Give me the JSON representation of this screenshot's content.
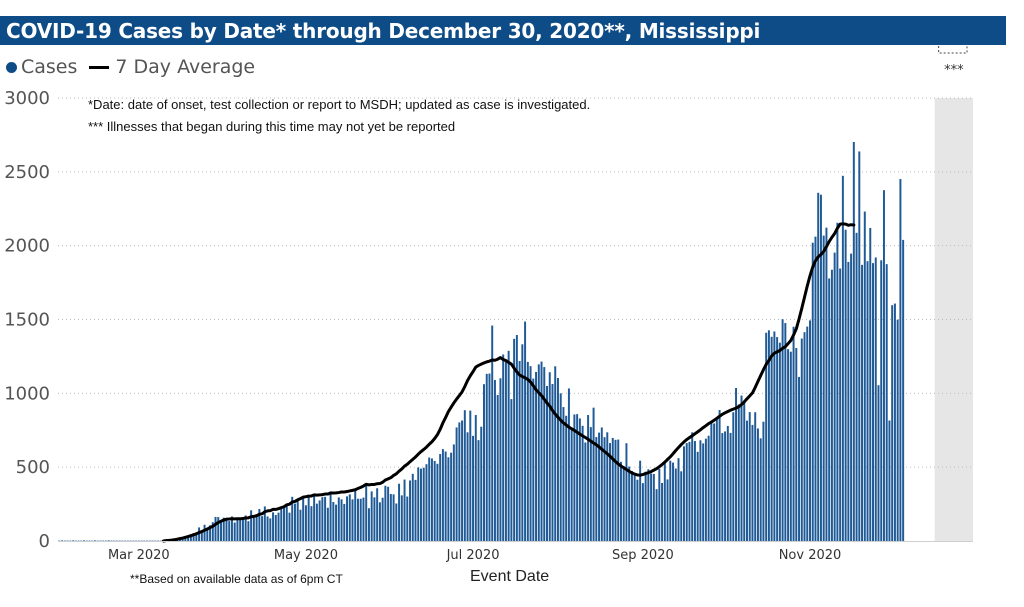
{
  "header": {
    "title": "COVID-19 Cases by Date* through December 30, 2020**, Mississippi"
  },
  "legend": {
    "cases_label": "Cases",
    "avg_label": "7 Day Average"
  },
  "notes": {
    "date_note": "*Date: date of onset, test collection or report to MSDH; updated as case is investigated.",
    "recent_note": "*** Illnesses that began during this time may not yet be reported",
    "based_note": "**Based on available data as of 6pm CT",
    "shade_label": "***"
  },
  "colors": {
    "title_bg": "#0e4c87",
    "bar": "#1f5a96",
    "average": "#000000",
    "shade": "#e6e6e6"
  },
  "chart_data": {
    "type": "bar",
    "title": "COVID-19 Cases by Date* through December 30, 2020**, Mississippi",
    "xlabel": "Event Date",
    "ylabel": "",
    "ylim": [
      0,
      3000
    ],
    "yticks": [
      0,
      500,
      1000,
      1500,
      2000,
      2500,
      3000
    ],
    "xlim": [
      "2020-02-01",
      "2020-12-30"
    ],
    "xticks": [
      {
        "date": "2020-03-01",
        "label": "Mar 2020"
      },
      {
        "date": "2020-05-01",
        "label": "May 2020"
      },
      {
        "date": "2020-07-01",
        "label": "Jul 2020"
      },
      {
        "date": "2020-09-01",
        "label": "Sep 2020"
      },
      {
        "date": "2020-11-01",
        "label": "Nov 2020"
      }
    ],
    "grid": true,
    "legend_position": "top-left",
    "shaded_region": {
      "start": "2020-12-17",
      "end": "2020-12-30",
      "label": "***"
    },
    "series": [
      {
        "name": "Cases",
        "type": "bar",
        "start_date": "2020-02-01",
        "values": [
          0,
          2,
          0,
          0,
          0,
          3,
          0,
          0,
          0,
          1,
          0,
          0,
          0,
          2,
          0,
          0,
          0,
          0,
          1,
          0,
          0,
          0,
          0,
          0,
          0,
          0,
          0,
          0,
          0,
          0,
          0,
          0,
          0,
          0,
          0,
          0,
          0,
          0,
          0,
          3,
          5,
          9,
          13,
          16,
          21,
          27,
          34,
          39,
          46,
          54,
          52,
          92,
          66,
          110,
          84,
          106,
          127,
          163,
          162,
          135,
          158,
          147,
          135,
          166,
          125,
          151,
          143,
          149,
          173,
          134,
          208,
          160,
          172,
          217,
          168,
          234,
          166,
          153,
          194,
          176,
          192,
          219,
          234,
          239,
          192,
          299,
          253,
          281,
          212,
          305,
          242,
          301,
          236,
          310,
          253,
          275,
          297,
          299,
          225,
          336,
          264,
          246,
          295,
          282,
          251,
          302,
          316,
          282,
          343,
          286,
          286,
          294,
          385,
          222,
          336,
          296,
          357,
          262,
          293,
          374,
          367,
          318,
          316,
          254,
          388,
          309,
          416,
          301,
          410,
          455,
          414,
          498,
          490,
          496,
          520,
          565,
          559,
          542,
          523,
          589,
          622,
          606,
          567,
          598,
          654,
          769,
          803,
          816,
          886,
          736,
          883,
          712,
          853,
          683,
          774,
          1062,
          1132,
          1134,
          1459,
          1090,
          989,
          1102,
          1263,
          1223,
          1288,
          961,
          1369,
          1395,
          1219,
          1332,
          1486,
          1213,
          1184,
          1100,
          1145,
          1196,
          1215,
          1178,
          1050,
          1143,
          1063,
          1183,
          1104,
          1000,
          907,
          848,
          1033,
          757,
          857,
          859,
          830,
          780,
          667,
          853,
          771,
          903,
          704,
          734,
          769,
          703,
          736,
          663,
          698,
          685,
          687,
          536,
          506,
          662,
          504,
          474,
          445,
          415,
          544,
          392,
          469,
          486,
          457,
          454,
          351,
          488,
          393,
          543,
          417,
          544,
          531,
          491,
          561,
          472,
          641,
          663,
          671,
          736,
          677,
          604,
          682,
          661,
          693,
          713,
          805,
          796,
          839,
          887,
          731,
          742,
          779,
          732,
          872,
          1036,
          925,
          985,
          952,
          815,
          873,
          786,
          872,
          762,
          695,
          808,
          1410,
          1427,
          1383,
          1419,
          1381,
          1343,
          1502,
          1476,
          1299,
          1282,
          1451,
          1307,
          1111,
          1371,
          1414,
          1452,
          1494,
          2020,
          2061,
          2358,
          2345,
          2068,
          2122,
          1778,
          1837,
          1953,
          2155,
          1845,
          2473,
          2108,
          1890,
          1946,
          2702,
          2087,
          2638,
          1870,
          2231,
          1895,
          2120,
          1882,
          1920,
          1055,
          1901,
          2376,
          1875,
          816,
          1597,
          1608,
          1499,
          2451,
          2039
        ]
      },
      {
        "name": "7 Day Average",
        "type": "line",
        "start_date": "2020-02-01",
        "values": [
          0,
          0,
          0,
          0,
          0,
          0,
          0,
          0,
          0,
          0,
          0,
          0,
          0,
          0,
          0,
          0,
          0,
          0,
          0,
          0,
          0,
          0,
          0,
          0,
          0,
          0,
          0,
          0,
          0,
          0,
          0,
          0,
          0,
          0,
          0,
          0,
          0,
          0,
          0,
          3,
          4,
          6,
          9,
          12,
          16,
          20,
          25,
          30,
          36,
          42,
          49,
          57,
          64,
          73,
          81,
          91,
          100,
          113,
          125,
          134,
          142,
          148,
          149,
          151,
          150,
          151,
          151,
          152,
          156,
          157,
          164,
          167,
          171,
          181,
          184,
          198,
          204,
          206,
          214,
          214,
          219,
          226,
          232,
          245,
          249,
          264,
          268,
          279,
          287,
          297,
          300,
          304,
          305,
          312,
          311,
          312,
          314,
          318,
          318,
          325,
          325,
          326,
          328,
          332,
          332,
          335,
          339,
          343,
          347,
          356,
          363,
          372,
          384,
          380,
          383,
          383,
          388,
          389,
          398,
          413,
          421,
          429,
          444,
          455,
          473,
          488,
          507,
          520,
          537,
          553,
          569,
          588,
          605,
          620,
          636,
          655,
          672,
          694,
          720,
          756,
          800,
          837,
          876,
          906,
          935,
          961,
          985,
          1010,
          1046,
          1087,
          1119,
          1147,
          1178,
          1189,
          1198,
          1206,
          1213,
          1218,
          1226,
          1224,
          1231,
          1242,
          1229,
          1222,
          1209,
          1198,
          1170,
          1145,
          1124,
          1114,
          1105,
          1094,
          1077,
          1052,
          1024,
          1004,
          985,
          960,
          935,
          913,
          884,
          860,
          838,
          818,
          800,
          786,
          771,
          760,
          749,
          736,
          724,
          712,
          701,
          689,
          676,
          664,
          652,
          637,
          621,
          606,
          591,
          574,
          556,
          538,
          522,
          508,
          496,
          484,
          472,
          461,
          453,
          447,
          446,
          450,
          457,
          463,
          470,
          480,
          490,
          503,
          518,
          534,
          552,
          570,
          591,
          613,
          633,
          653,
          671,
          687,
          700,
          713,
          726,
          739,
          753,
          768,
          781,
          795,
          806,
          818,
          831,
          845,
          858,
          868,
          877,
          886,
          893,
          900,
          910,
          924,
          942,
          963,
          983,
          1003,
          1040,
          1081,
          1121,
          1160,
          1196,
          1223,
          1253,
          1272,
          1281,
          1290,
          1305,
          1316,
          1337,
          1358,
          1395,
          1437,
          1503,
          1575,
          1651,
          1727,
          1796,
          1855,
          1898,
          1924,
          1940,
          1961,
          1993,
          2028,
          2057,
          2082,
          2118,
          2146,
          2148,
          2146,
          2138,
          2142,
          2140
        ]
      }
    ]
  }
}
